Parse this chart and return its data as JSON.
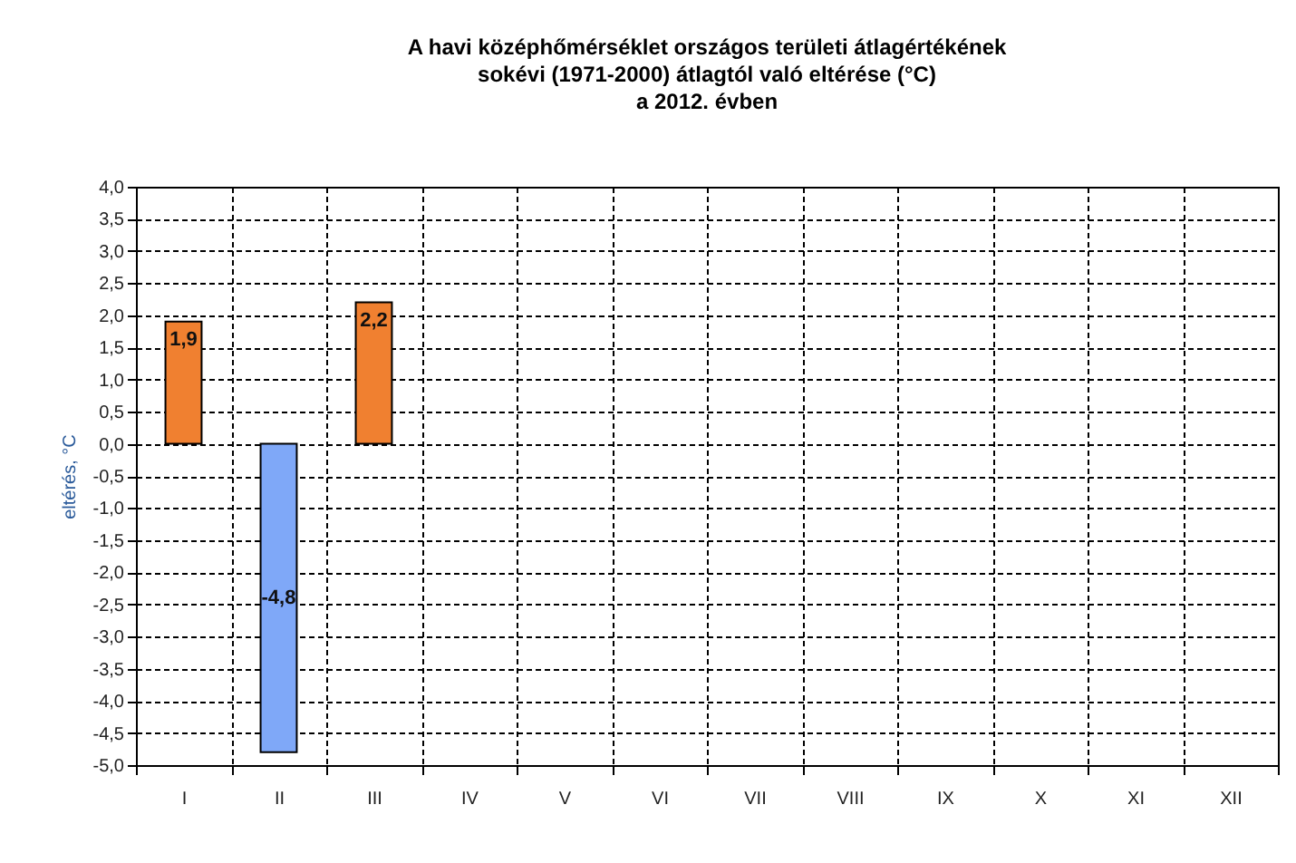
{
  "chart_data": {
    "type": "bar",
    "title": "A havi középhőmérséklet országos területi átlagértékének\nsokévi (1971-2000) átlagtól való eltérése (°C)\na 2012. évben",
    "ylabel": "eltérés, °C",
    "categories": [
      "I",
      "II",
      "III",
      "IV",
      "V",
      "VI",
      "VII",
      "VIII",
      "IX",
      "X",
      "XI",
      "XII"
    ],
    "values": [
      1.9,
      -4.8,
      2.2,
      null,
      null,
      null,
      null,
      null,
      null,
      null,
      null,
      null
    ],
    "colors": [
      "#f08030",
      "#7fa8f8",
      "#f08030",
      null,
      null,
      null,
      null,
      null,
      null,
      null,
      null,
      null
    ],
    "value_labels": [
      "1,9",
      "-4,8",
      "2,2",
      null,
      null,
      null,
      null,
      null,
      null,
      null,
      null,
      null
    ],
    "ylim": [
      -5,
      4
    ],
    "yticks": [
      {
        "value": -5,
        "label": "-5,0"
      },
      {
        "value": -4.5,
        "label": "-4,5"
      },
      {
        "value": -4,
        "label": "-4,0"
      },
      {
        "value": -3.5,
        "label": "-3,5"
      },
      {
        "value": -3,
        "label": "-3,0"
      },
      {
        "value": -2.5,
        "label": "-2,5"
      },
      {
        "value": -2,
        "label": "-2,0"
      },
      {
        "value": -1.5,
        "label": "-1,5"
      },
      {
        "value": -1,
        "label": "-1,0"
      },
      {
        "value": -0.5,
        "label": "-0,5"
      },
      {
        "value": 0,
        "label": "0,0"
      },
      {
        "value": 0.5,
        "label": "0,5"
      },
      {
        "value": 1,
        "label": "1,0"
      },
      {
        "value": 1.5,
        "label": "1,5"
      },
      {
        "value": 2,
        "label": "2,0"
      },
      {
        "value": 2.5,
        "label": "2,5"
      },
      {
        "value": 3,
        "label": "3,0"
      },
      {
        "value": 3.5,
        "label": "3,5"
      },
      {
        "value": 4,
        "label": "4,0"
      }
    ],
    "grid": true
  }
}
